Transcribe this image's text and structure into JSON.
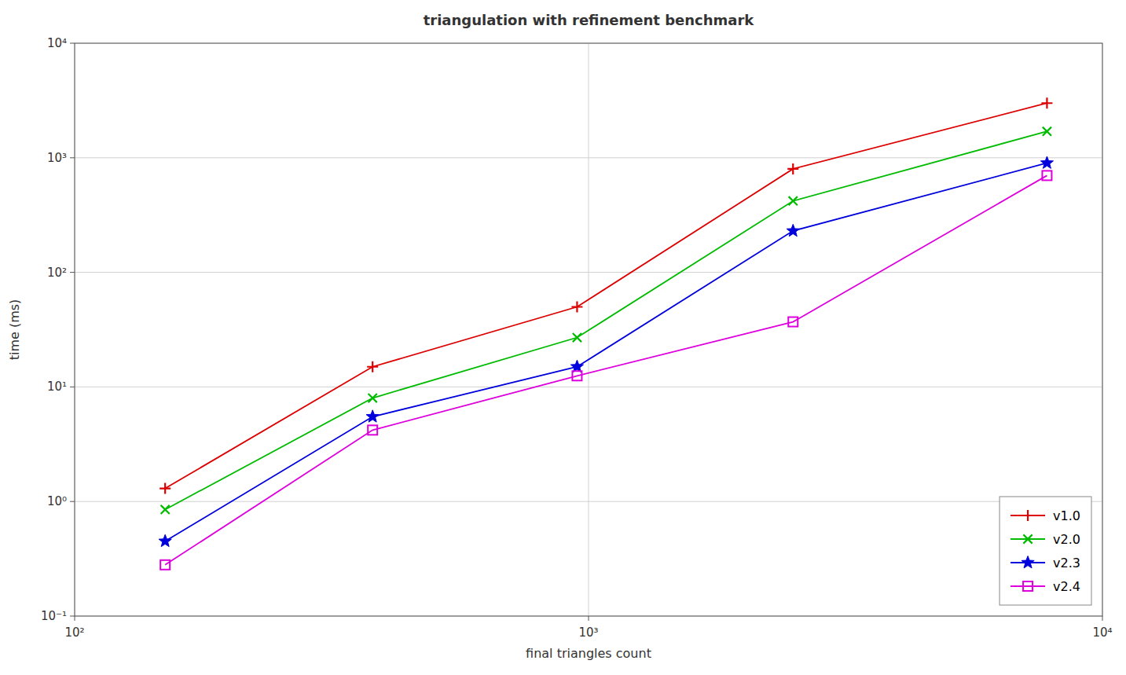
{
  "chart_data": {
    "type": "line",
    "title": "triangulation with refinement benchmark",
    "xlabel": "final triangles count",
    "ylabel": "time (ms)",
    "log": true,
    "grid": true,
    "legend": "lower right",
    "xlim": [
      100,
      10000
    ],
    "ylim": [
      0.1,
      10000
    ],
    "xticks": [
      {
        "value": 100,
        "label": "10²"
      },
      {
        "value": 1000,
        "label": "10³"
      },
      {
        "value": 10000,
        "label": "10⁴"
      }
    ],
    "yticks": [
      {
        "value": 0.1,
        "label": "10⁻¹"
      },
      {
        "value": 1,
        "label": "10⁰"
      },
      {
        "value": 10,
        "label": "10¹"
      },
      {
        "value": 100,
        "label": "10²"
      },
      {
        "value": 1000,
        "label": "10³"
      },
      {
        "value": 10000,
        "label": "10⁴"
      }
    ],
    "x": [
      150,
      380,
      950,
      2500,
      7800
    ],
    "series": [
      {
        "name": "v1.0",
        "color": "#dd0000",
        "marker": "plus",
        "values": [
          1.3,
          15.0,
          50.0,
          800,
          3000
        ]
      },
      {
        "name": "v2.0",
        "color": "#00bb00",
        "marker": "x",
        "values": [
          0.85,
          8.0,
          27.0,
          420,
          1700
        ]
      },
      {
        "name": "v2.3",
        "color": "#0000dd",
        "marker": "star",
        "values": [
          0.45,
          5.5,
          15.0,
          230,
          900
        ]
      },
      {
        "name": "v2.4",
        "color": "#dd00dd",
        "marker": "square",
        "values": [
          0.28,
          4.2,
          12.5,
          37.0,
          700
        ]
      }
    ]
  }
}
